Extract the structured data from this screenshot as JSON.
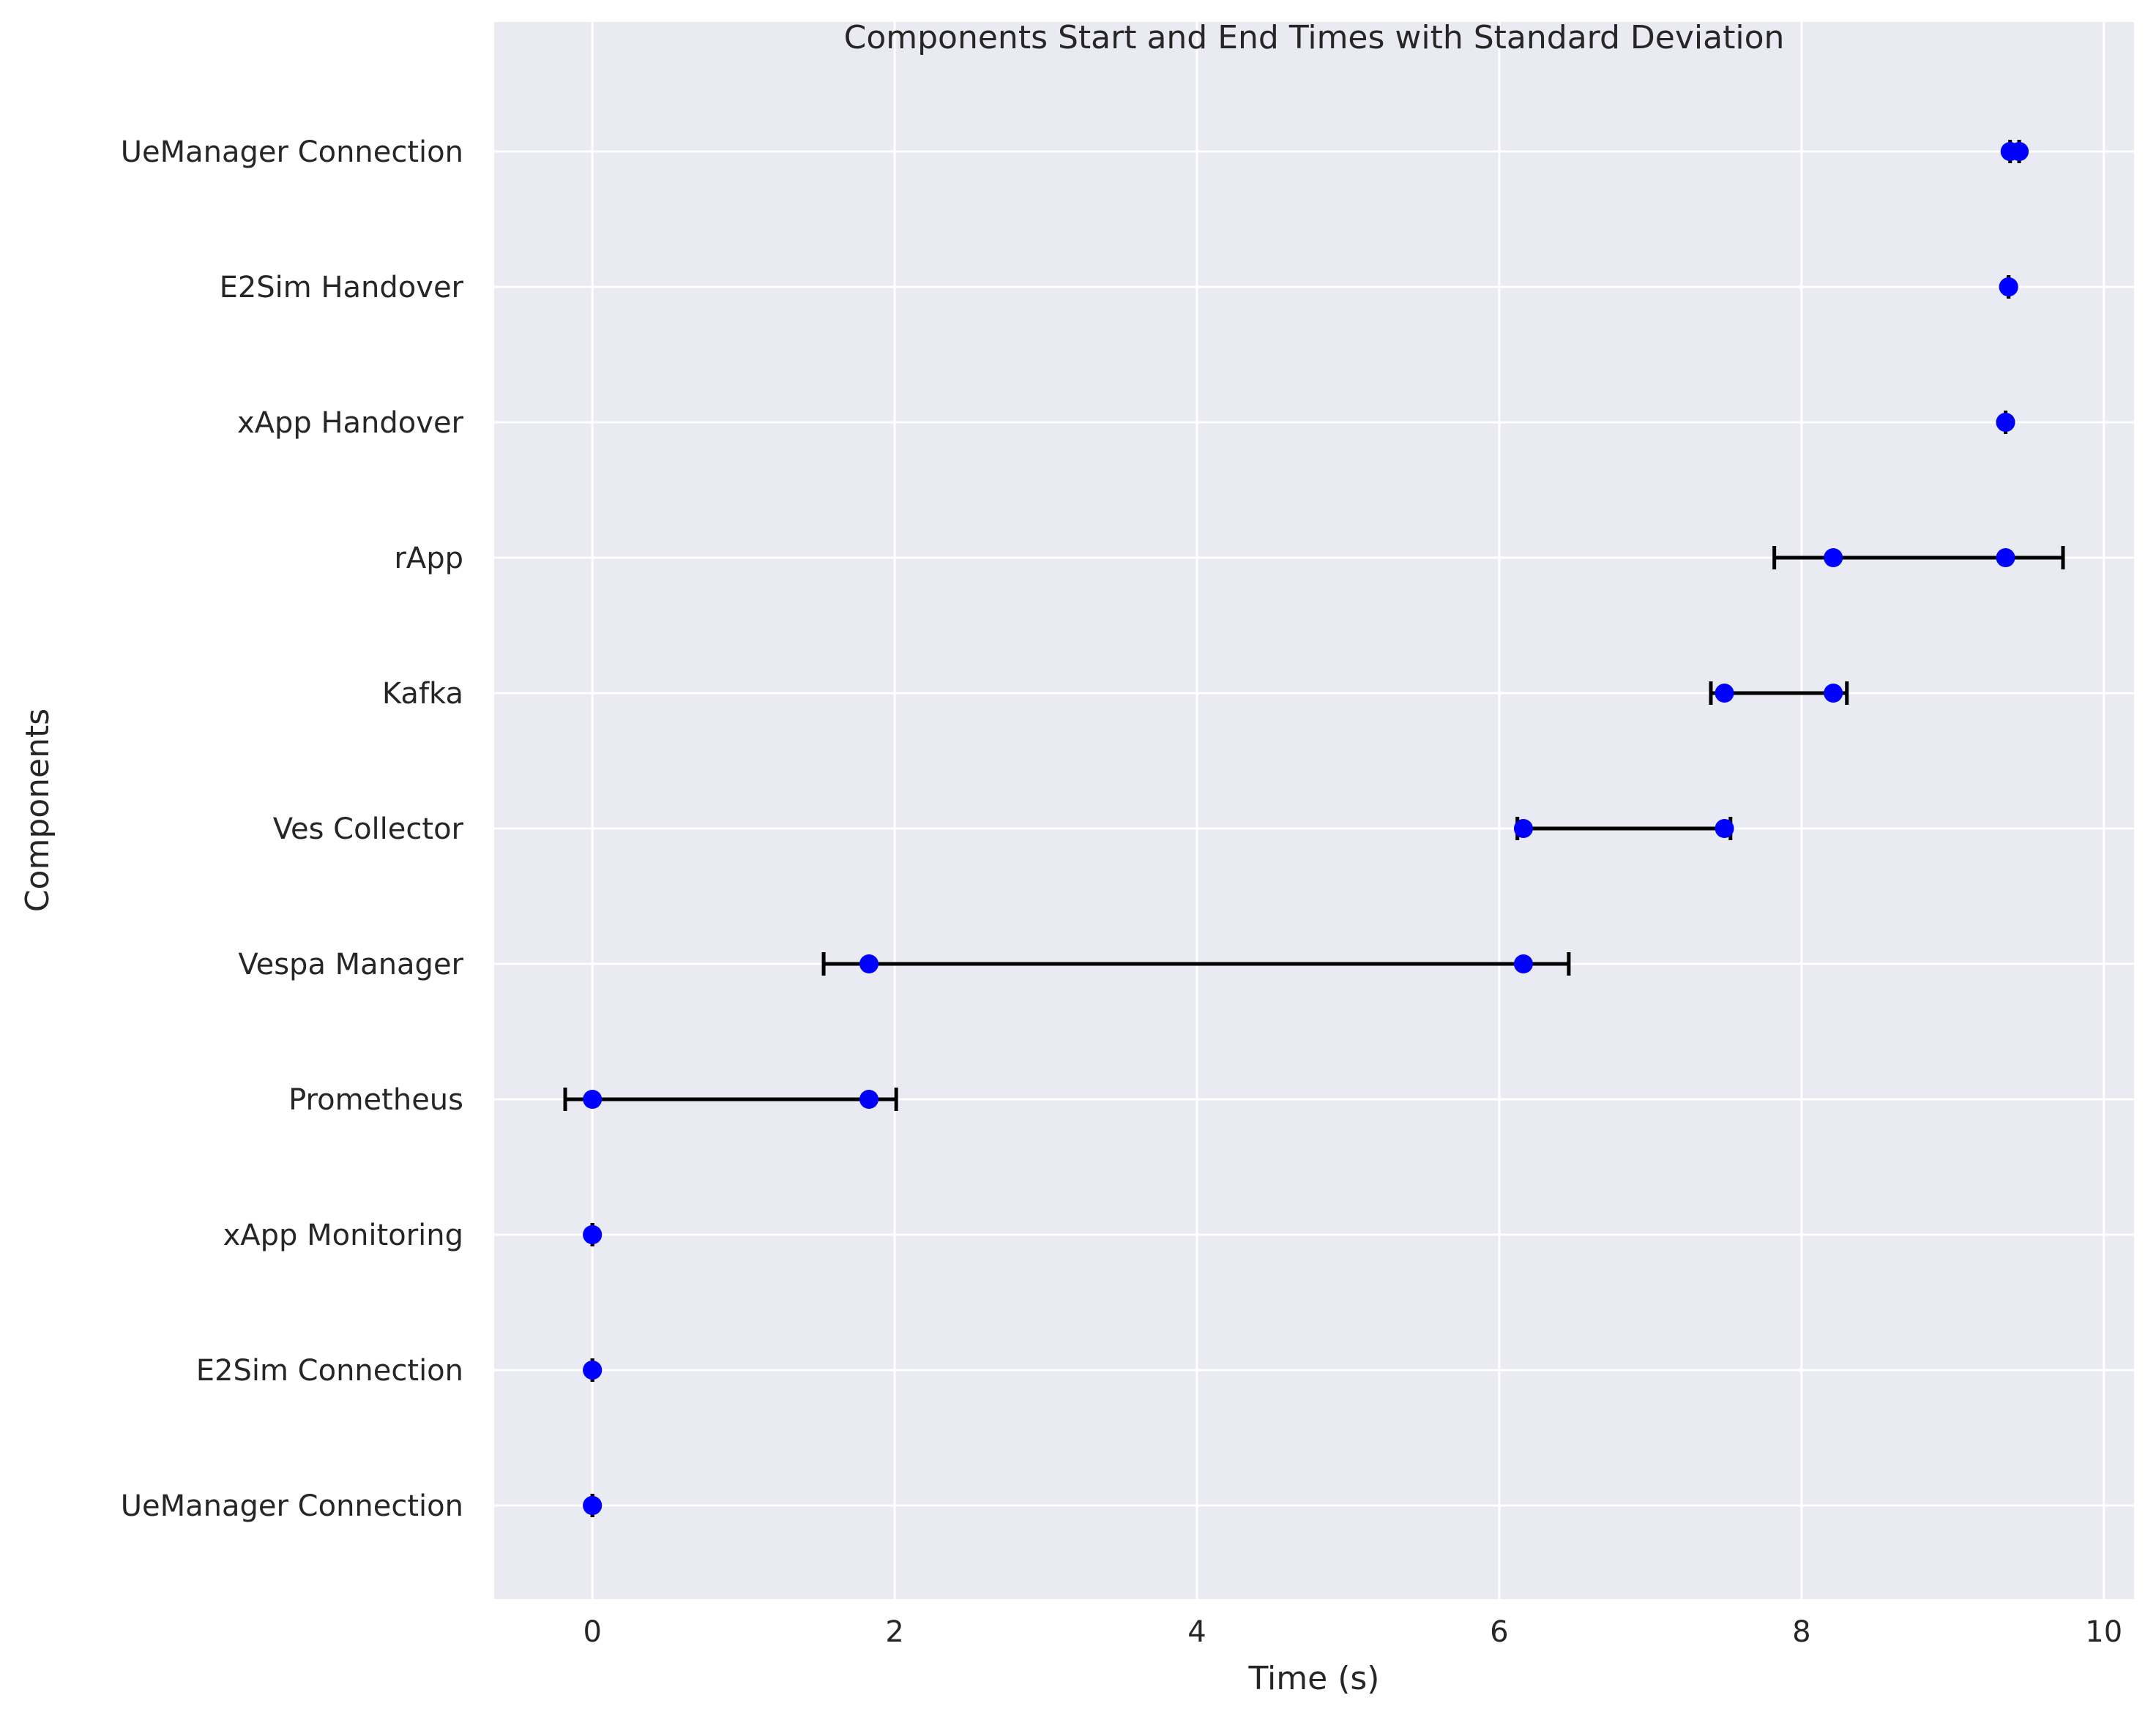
{
  "chart_data": {
    "type": "scatter",
    "title": "Components Start and End Times with Standard Deviation",
    "xlabel": "Time (s)",
    "ylabel": "Components",
    "xlim": [
      -0.65,
      10.2
    ],
    "xticks": [
      0,
      2,
      4,
      6,
      8,
      10
    ],
    "grid": true,
    "legend": "none",
    "colors": {
      "background": "#eaeaf2",
      "grid": "#ffffff",
      "marker": "#0000ff",
      "errorbar": "#000000",
      "text": "#262626"
    },
    "categories": [
      "UeManager Connection",
      "E2Sim Connection",
      "xApp Monitoring",
      "Prometheus",
      "Vespa Manager",
      "Ves Collector",
      "Kafka",
      "rApp",
      "xApp Handover",
      "E2Sim Handover",
      "UeManager Connection"
    ],
    "series": [
      {
        "start": [
          0,
          0,
          0,
          0,
          1.83,
          6.16,
          7.49,
          8.21,
          9.35,
          9.37,
          9.38
        ],
        "end": [
          0,
          0,
          0,
          1.83,
          6.16,
          7.49,
          8.21,
          9.35,
          9.35,
          9.37,
          9.44
        ],
        "err_low": [
          0,
          0,
          0,
          -0.18,
          1.53,
          6.12,
          7.4,
          7.82,
          9.35,
          9.37,
          9.38
        ],
        "err_high": [
          0,
          0,
          0,
          2.01,
          6.46,
          7.53,
          8.3,
          9.73,
          9.35,
          9.37,
          9.44
        ]
      }
    ]
  }
}
